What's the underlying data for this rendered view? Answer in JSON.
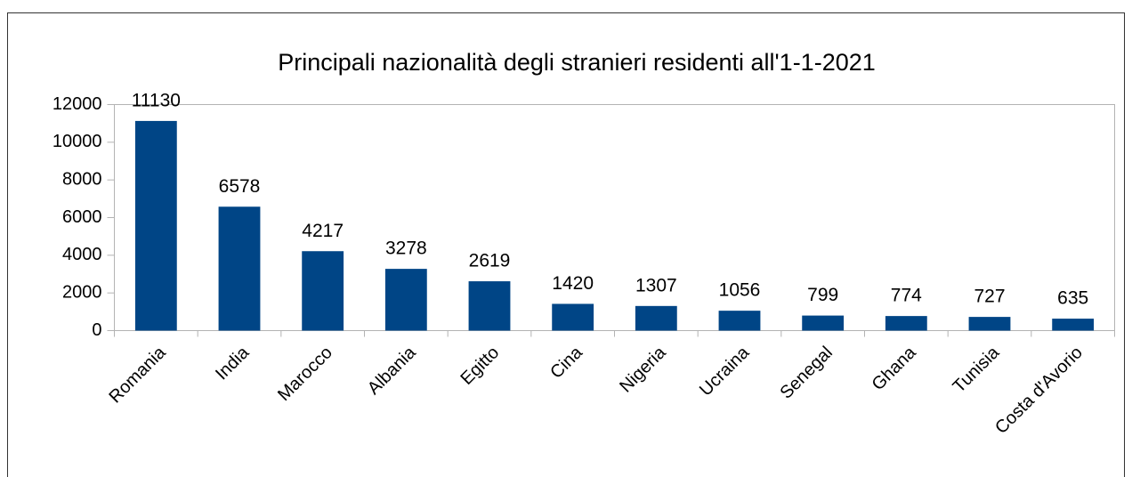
{
  "chart_data": {
    "type": "bar",
    "title": "Principali nazionalità degli stranieri residenti all'1-1-2021",
    "categories": [
      "Romania",
      "India",
      "Marocco",
      "Albania",
      "Egitto",
      "Cina",
      "Nigeria",
      "Ucraina",
      "Senegal",
      "Ghana",
      "Tunisia",
      "Costa d'Avorio"
    ],
    "values": [
      11130,
      6578,
      4217,
      3278,
      2619,
      1420,
      1307,
      1056,
      799,
      774,
      727,
      635
    ],
    "color": "#004586",
    "ylim": [
      0,
      12000
    ],
    "yticks": [
      0,
      2000,
      4000,
      6000,
      8000,
      10000,
      12000
    ],
    "grid": false
  }
}
